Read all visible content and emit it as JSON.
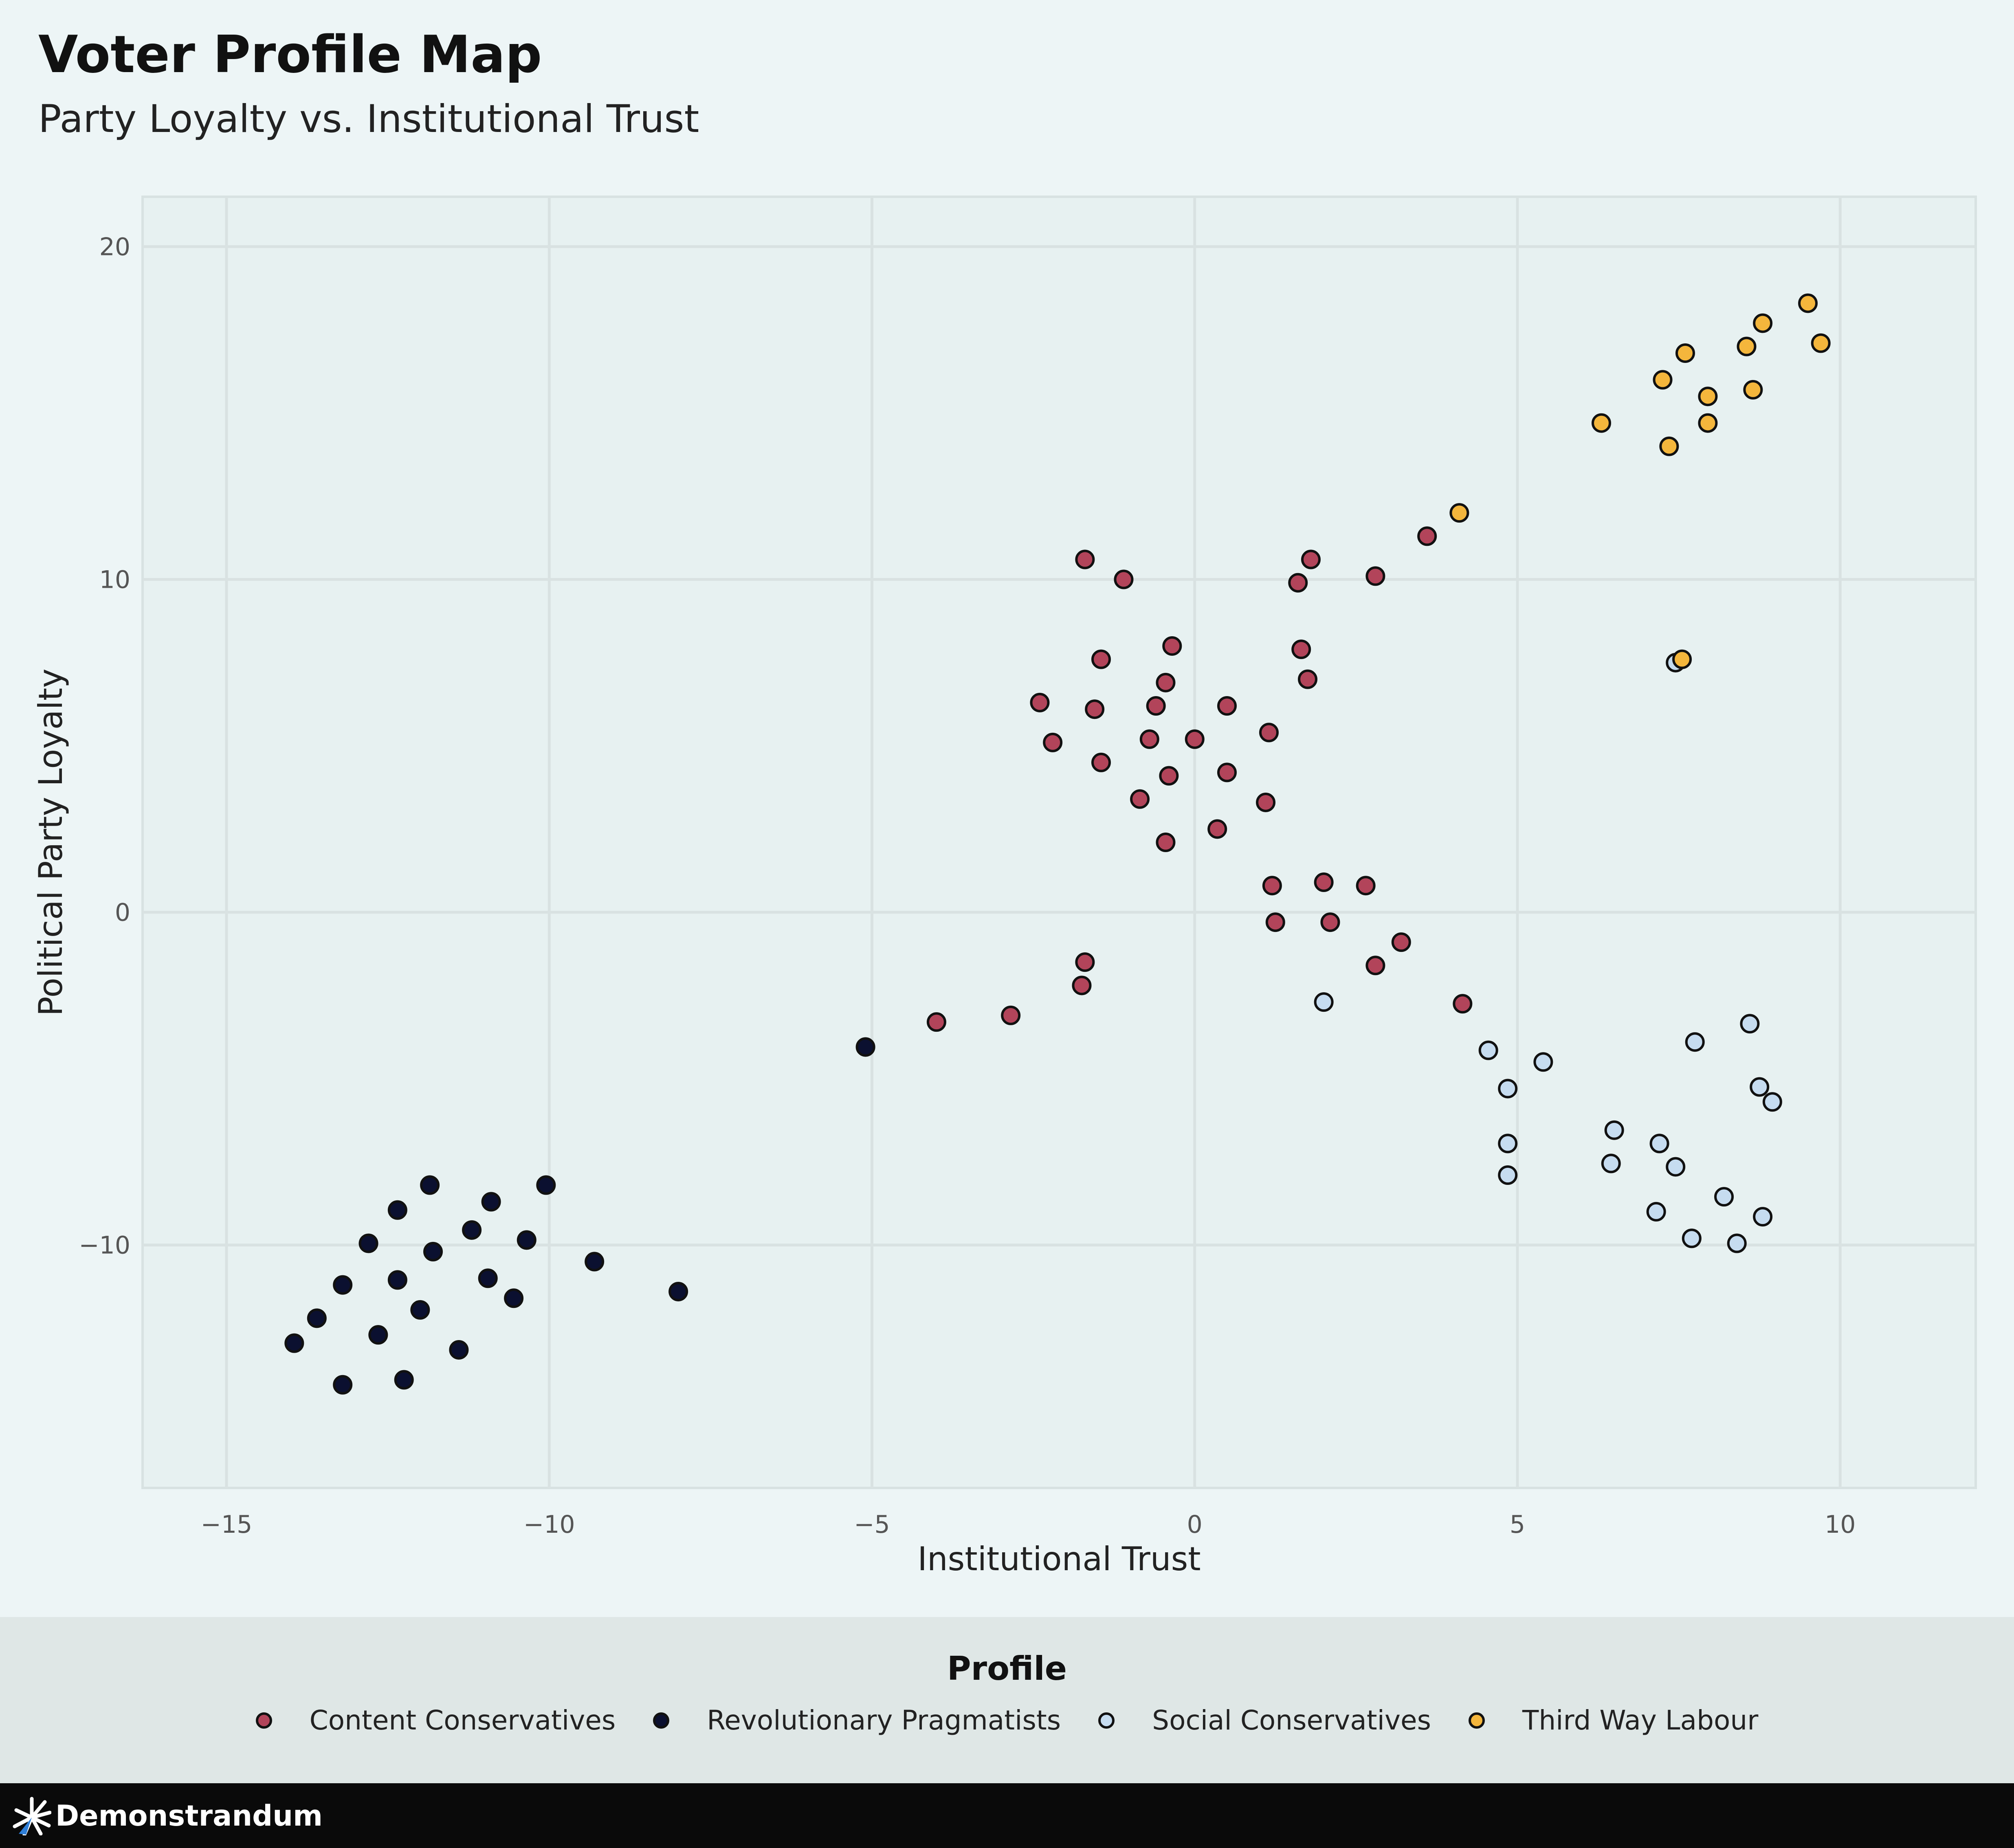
{
  "chart_data": {
    "type": "scatter",
    "title": "Voter Profile Map",
    "subtitle": "Party Loyalty vs. Institutional Trust",
    "xlabel": "Institutional Trust",
    "ylabel": "Political Party Loyalty",
    "xlim": [
      -16.3,
      12.1
    ],
    "ylim": [
      -17.3,
      21.5
    ],
    "xticks": [
      -15,
      -10,
      -5,
      0,
      5,
      10
    ],
    "yticks": [
      -10,
      0,
      10,
      20
    ],
    "xtick_labels": [
      "−15",
      "−10",
      "−5",
      "0",
      "5",
      "10"
    ],
    "ytick_labels": [
      "−10",
      "0",
      "10",
      "20"
    ],
    "grid": true,
    "legend_title": "Profile",
    "legend_position": "bottom",
    "series": [
      {
        "name": "Content Conservatives",
        "color": "#b2445a",
        "points": [
          [
            -1.7,
            10.6
          ],
          [
            -1.1,
            10.0
          ],
          [
            1.8,
            10.6
          ],
          [
            1.6,
            9.9
          ],
          [
            2.8,
            10.1
          ],
          [
            3.6,
            11.3
          ],
          [
            -0.35,
            8.0
          ],
          [
            1.65,
            7.9
          ],
          [
            -1.45,
            7.6
          ],
          [
            -0.45,
            6.9
          ],
          [
            1.75,
            7.0
          ],
          [
            -2.4,
            6.3
          ],
          [
            -1.55,
            6.1
          ],
          [
            -0.6,
            6.2
          ],
          [
            0.5,
            6.2
          ],
          [
            -2.2,
            5.1
          ],
          [
            -0.7,
            5.2
          ],
          [
            0.0,
            5.2
          ],
          [
            1.15,
            5.4
          ],
          [
            -1.45,
            4.5
          ],
          [
            -0.4,
            4.1
          ],
          [
            0.5,
            4.2
          ],
          [
            -0.85,
            3.4
          ],
          [
            1.1,
            3.3
          ],
          [
            0.35,
            2.5
          ],
          [
            -0.45,
            2.1
          ],
          [
            1.2,
            0.8
          ],
          [
            2.0,
            0.9
          ],
          [
            2.65,
            0.8
          ],
          [
            1.25,
            -0.3
          ],
          [
            2.1,
            -0.3
          ],
          [
            3.2,
            -0.9
          ],
          [
            2.8,
            -1.6
          ],
          [
            -1.7,
            -1.5
          ],
          [
            -1.75,
            -2.2
          ],
          [
            -2.85,
            -3.1
          ],
          [
            -4.0,
            -3.3
          ],
          [
            4.15,
            -2.75
          ]
        ]
      },
      {
        "name": "Revolutionary Pragmatists",
        "color": "#0b1030",
        "points": [
          [
            -11.85,
            -8.2
          ],
          [
            -10.05,
            -8.2
          ],
          [
            -12.35,
            -8.95
          ],
          [
            -10.9,
            -8.7
          ],
          [
            -12.8,
            -9.95
          ],
          [
            -11.2,
            -9.55
          ],
          [
            -10.35,
            -9.85
          ],
          [
            -11.8,
            -10.2
          ],
          [
            -9.3,
            -10.5
          ],
          [
            -8.0,
            -11.4
          ],
          [
            -13.2,
            -11.2
          ],
          [
            -12.35,
            -11.05
          ],
          [
            -10.95,
            -11.0
          ],
          [
            -10.55,
            -11.6
          ],
          [
            -13.6,
            -12.2
          ],
          [
            -12.0,
            -11.95
          ],
          [
            -12.65,
            -12.7
          ],
          [
            -11.4,
            -13.15
          ],
          [
            -13.95,
            -12.95
          ],
          [
            -13.2,
            -14.2
          ],
          [
            -12.25,
            -14.05
          ],
          [
            -5.1,
            -4.05
          ]
        ]
      },
      {
        "name": "Social Conservatives",
        "color": "#c6dcf0",
        "points": [
          [
            7.45,
            7.5
          ],
          [
            2.0,
            -2.7
          ],
          [
            4.55,
            -4.15
          ],
          [
            5.4,
            -4.5
          ],
          [
            4.85,
            -5.3
          ],
          [
            7.75,
            -3.9
          ],
          [
            8.6,
            -3.35
          ],
          [
            8.75,
            -5.25
          ],
          [
            8.95,
            -5.7
          ],
          [
            6.5,
            -6.55
          ],
          [
            4.85,
            -6.95
          ],
          [
            7.2,
            -6.95
          ],
          [
            6.45,
            -7.55
          ],
          [
            7.45,
            -7.65
          ],
          [
            4.85,
            -7.9
          ],
          [
            8.2,
            -8.55
          ],
          [
            7.15,
            -9.0
          ],
          [
            8.8,
            -9.15
          ],
          [
            7.7,
            -9.8
          ],
          [
            8.4,
            -9.95
          ]
        ]
      },
      {
        "name": "Third Way Labour",
        "color": "#f4b63c",
        "points": [
          [
            9.5,
            18.3
          ],
          [
            8.8,
            17.7
          ],
          [
            9.7,
            17.1
          ],
          [
            8.55,
            17.0
          ],
          [
            7.6,
            16.8
          ],
          [
            7.25,
            16.0
          ],
          [
            7.95,
            15.5
          ],
          [
            8.65,
            15.7
          ],
          [
            6.3,
            14.7
          ],
          [
            7.95,
            14.7
          ],
          [
            7.35,
            14.0
          ],
          [
            4.1,
            12.0
          ],
          [
            7.55,
            7.6
          ]
        ]
      }
    ]
  },
  "footer": {
    "brand": "Demonstrandum",
    "logo_icon": "demonstrandum-logo-icon"
  }
}
